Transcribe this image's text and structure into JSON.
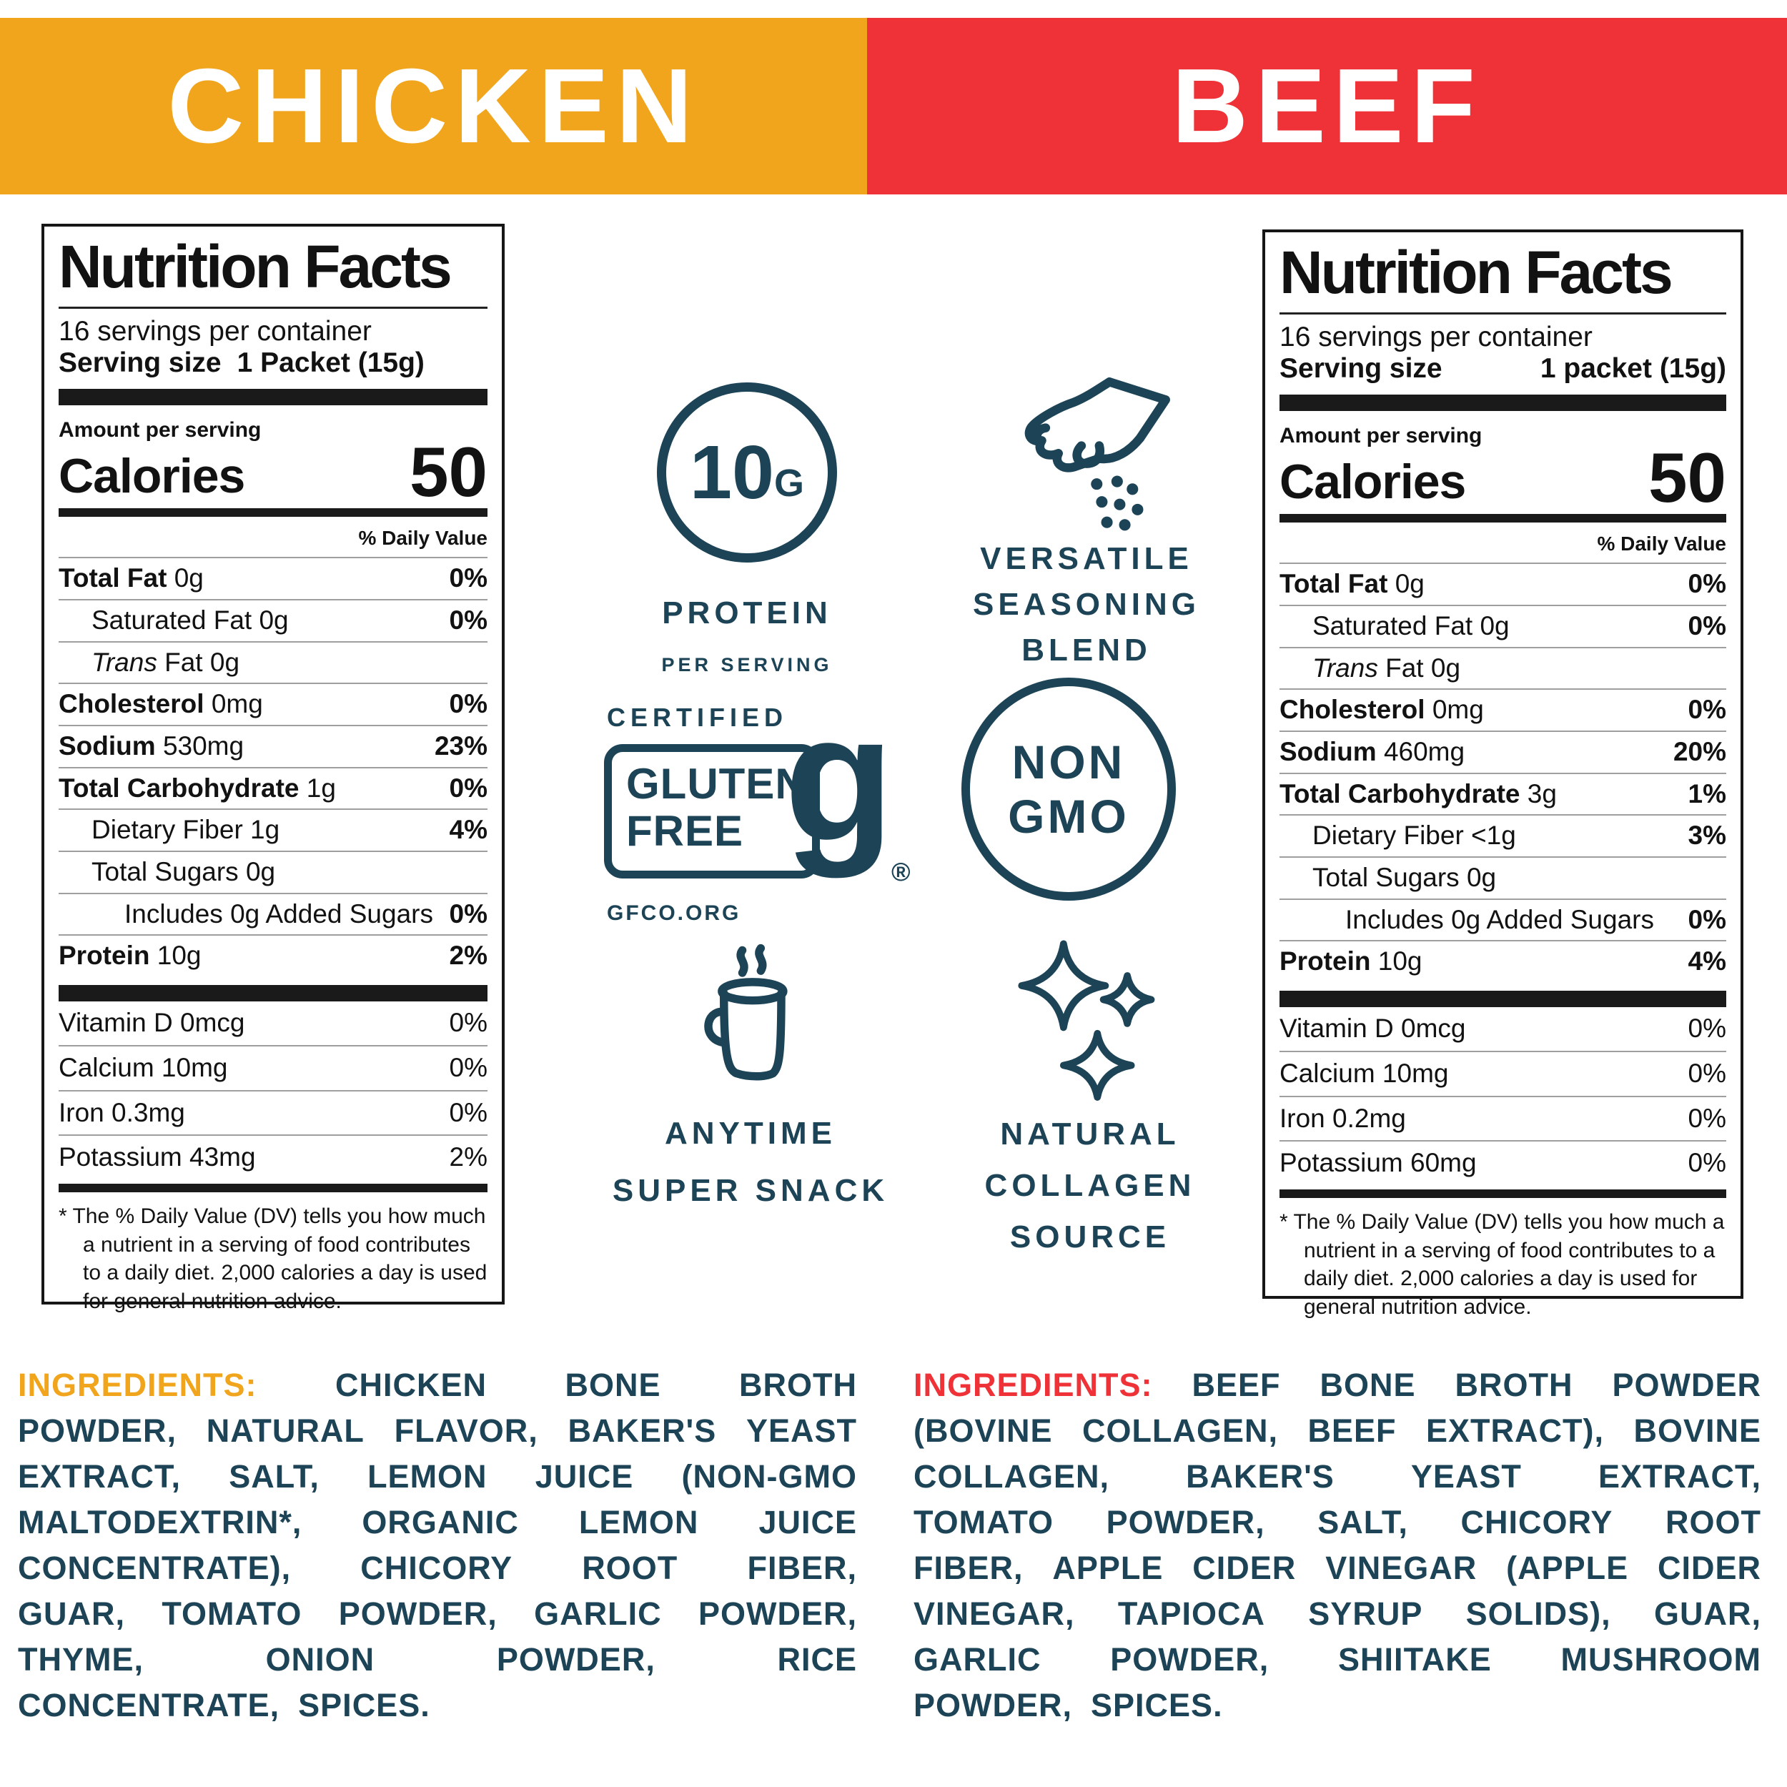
{
  "colors": {
    "chicken_banner": "#F1A51C",
    "beef_banner": "#EE3237",
    "icon_teal": "#1C4356",
    "label_ink": "#161616"
  },
  "banners": {
    "chicken": {
      "label": "CHICKEN"
    },
    "beef": {
      "label": "BEEF"
    }
  },
  "labels": {
    "chicken": {
      "title": "Nutrition Facts",
      "servings": "16 servings per container",
      "serving_size_label": "Serving size",
      "serving_size_value": "1 Packet (15g)",
      "amount_label": "Amount per serving",
      "calories_label": "Calories",
      "calories_value": "50",
      "dv_header": "% Daily Value",
      "rows": [
        {
          "name": "Total Fat",
          "value": "0g",
          "dv": "0%",
          "bold": true,
          "indent": 0
        },
        {
          "name": "Saturated Fat",
          "value": "0g",
          "dv": "0%",
          "indent": 1
        },
        {
          "name": "Trans",
          "value": "Fat 0g",
          "dv": "",
          "indent": 1,
          "italic": true
        },
        {
          "name": "Cholesterol",
          "value": "0mg",
          "dv": "0%",
          "bold": true,
          "indent": 0
        },
        {
          "name": "Sodium",
          "value": "530mg",
          "dv": "23%",
          "bold": true,
          "indent": 0
        },
        {
          "name": "Total Carbohydrate",
          "value": "1g",
          "dv": "0%",
          "bold": true,
          "indent": 0
        },
        {
          "name": "Dietary Fiber",
          "value": "1g",
          "dv": "4%",
          "indent": 1
        },
        {
          "name": "Total Sugars",
          "value": "0g",
          "dv": "",
          "indent": 1
        },
        {
          "name": "Includes 0g Added Sugars",
          "value": "",
          "dv": "0%",
          "indent": 2
        },
        {
          "name": "Protein",
          "value": "10g",
          "dv": "2%",
          "bold": true,
          "indent": 0
        }
      ],
      "micros": [
        {
          "name": "Vitamin D",
          "value": "0mcg",
          "dv": "0%"
        },
        {
          "name": "Calcium",
          "value": "10mg",
          "dv": "0%"
        },
        {
          "name": "Iron",
          "value": "0.3mg",
          "dv": "0%"
        },
        {
          "name": "Potassium",
          "value": "43mg",
          "dv": "2%"
        }
      ],
      "footnote": "* The % Daily Value (DV) tells you how much a nutrient in a serving of food contributes to a daily diet. 2,000 calories a day is used for general nutrition advice."
    },
    "beef": {
      "title": "Nutrition Facts",
      "servings": "16 servings per container",
      "serving_size_label": "Serving size",
      "serving_size_value": "1 packet (15g)",
      "amount_label": "Amount per serving",
      "calories_label": "Calories",
      "calories_value": "50",
      "dv_header": "% Daily Value",
      "rows": [
        {
          "name": "Total Fat",
          "value": "0g",
          "dv": "0%",
          "bold": true,
          "indent": 0
        },
        {
          "name": "Saturated Fat",
          "value": "0g",
          "dv": "0%",
          "indent": 1
        },
        {
          "name": "Trans",
          "value": "Fat 0g",
          "dv": "",
          "indent": 1,
          "italic": true
        },
        {
          "name": "Cholesterol",
          "value": "0mg",
          "dv": "0%",
          "bold": true,
          "indent": 0
        },
        {
          "name": "Sodium",
          "value": "460mg",
          "dv": "20%",
          "bold": true,
          "indent": 0
        },
        {
          "name": "Total Carbohydrate",
          "value": "3g",
          "dv": "1%",
          "bold": true,
          "indent": 0
        },
        {
          "name": "Dietary Fiber",
          "value": "<1g",
          "dv": "3%",
          "indent": 1
        },
        {
          "name": "Total Sugars",
          "value": "0g",
          "dv": "",
          "indent": 1
        },
        {
          "name": "Includes 0g Added Sugars",
          "value": "",
          "dv": "0%",
          "indent": 2
        },
        {
          "name": "Protein",
          "value": "10g",
          "dv": "4%",
          "bold": true,
          "indent": 0
        }
      ],
      "micros": [
        {
          "name": "Vitamin D",
          "value": "0mcg",
          "dv": "0%"
        },
        {
          "name": "Calcium",
          "value": "10mg",
          "dv": "0%"
        },
        {
          "name": "Iron",
          "value": "0.2mg",
          "dv": "0%"
        },
        {
          "name": "Potassium",
          "value": "60mg",
          "dv": "0%"
        }
      ],
      "footnote": "* The % Daily Value (DV) tells you how much a nutrient in a serving of food contributes to a daily diet. 2,000 calories a day is used for general nutrition advice."
    }
  },
  "icons": {
    "protein": {
      "value": "10",
      "unit": "G",
      "label": "PROTEIN",
      "sublabel": "PER SERVING"
    },
    "seasoning": {
      "line1": "VERSATILE",
      "line2": "SEASONING",
      "line3": "BLEND"
    },
    "gluten_free": {
      "certified": "CERTIFIED",
      "word1": "GLUTEN",
      "word2": "FREE",
      "g": "g",
      "reg": "®",
      "org": "GFCO.ORG"
    },
    "non_gmo": {
      "line1": "NON",
      "line2": "GMO"
    },
    "anytime": {
      "line1": "ANYTIME",
      "line2": "SUPER SNACK"
    },
    "collagen": {
      "line1": "NATURAL",
      "line2": "COLLAGEN",
      "line3": "SOURCE"
    }
  },
  "ingredients": {
    "chicken": {
      "accent_color": "#F1A51C",
      "lines": [
        {
          "accent_first": true,
          "words": [
            "INGREDIENTS:",
            "CHICKEN",
            "BONE",
            "BROTH"
          ]
        },
        {
          "words": [
            "POWDER,",
            "NATURAL",
            "FLAVOR,",
            "BAKER'S",
            "YEAST"
          ]
        },
        {
          "words": [
            "EXTRACT,",
            "SALT,",
            "LEMON",
            "JUICE",
            "(NON-GMO"
          ]
        },
        {
          "words": [
            "MALTODEXTRIN*,",
            "ORGANIC",
            "LEMON",
            "JUICE"
          ]
        },
        {
          "words": [
            "CONCENTRATE),",
            "CHICORY",
            "ROOT",
            "FIBER,"
          ]
        },
        {
          "words": [
            "GUAR,",
            "TOMATO",
            "POWDER,",
            "GARLIC",
            "POWDER,"
          ]
        },
        {
          "words": [
            "THYME,",
            "ONION",
            "POWDER,",
            "RICE"
          ]
        },
        {
          "words": [
            "CONCENTRATE,",
            "SPICES."
          ],
          "justify": false
        }
      ]
    },
    "beef": {
      "accent_color": "#EE3237",
      "lines": [
        {
          "accent_first": true,
          "words": [
            "INGREDIENTS:",
            "BEEF",
            "BONE",
            "BROTH",
            "POWDER"
          ]
        },
        {
          "words": [
            "(BOVINE",
            "COLLAGEN,",
            "BEEF",
            "EXTRACT),",
            "BOVINE"
          ]
        },
        {
          "words": [
            "COLLAGEN,",
            "BAKER'S",
            "YEAST",
            "EXTRACT,"
          ]
        },
        {
          "words": [
            "TOMATO",
            "POWDER,",
            "SALT,",
            "CHICORY",
            "ROOT"
          ]
        },
        {
          "words": [
            "FIBER,",
            "APPLE",
            "CIDER",
            "VINEGAR",
            "(APPLE",
            "CIDER"
          ]
        },
        {
          "words": [
            "VINEGAR,",
            "TAPIOCA",
            "SYRUP",
            "SOLIDS),",
            "GUAR,"
          ]
        },
        {
          "words": [
            "GARLIC",
            "POWDER,",
            "SHIITAKE",
            "MUSHROOM"
          ]
        },
        {
          "words": [
            "POWDER,",
            "SPICES."
          ],
          "justify": false
        }
      ]
    }
  }
}
